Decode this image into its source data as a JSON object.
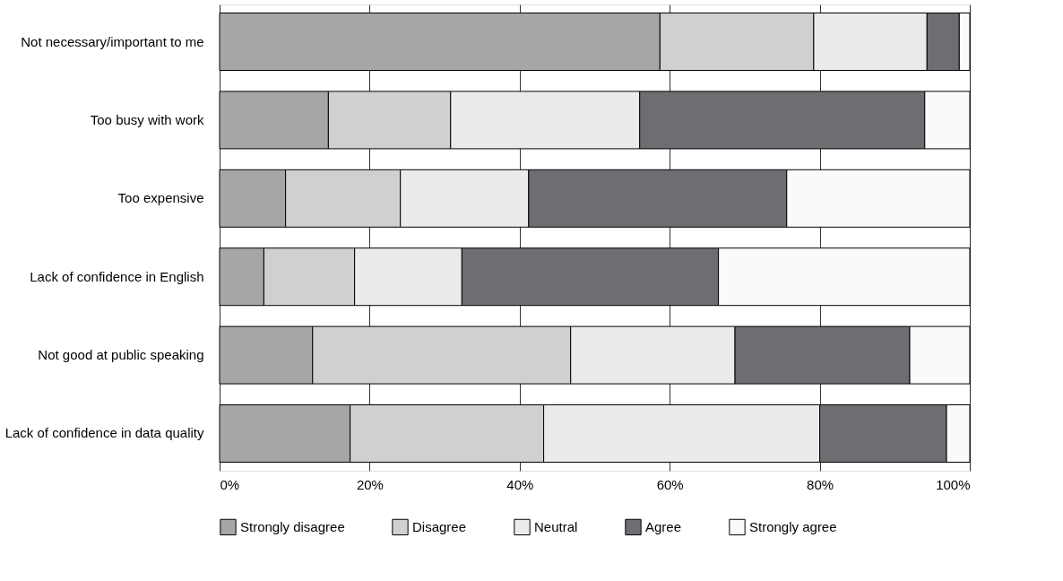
{
  "chart_data": {
    "type": "bar",
    "orientation": "horizontal",
    "stacked": true,
    "categories": [
      "Not necessary/important to me",
      "Too busy with work",
      "Too expensive",
      "Lack of confidence in English",
      "Not good at public speaking",
      "Lack of confidence in data quality"
    ],
    "series": [
      {
        "name": "Strongly disagree",
        "color": "#a6a6a6",
        "values": [
          58.7,
          14.5,
          8.8,
          5.9,
          12.4,
          17.4
        ]
      },
      {
        "name": "Disagree",
        "color": "#d0d0d0",
        "values": [
          20.5,
          16.3,
          15.3,
          12.1,
          34.4,
          25.8
        ]
      },
      {
        "name": "Neutral",
        "color": "#ebebeb",
        "values": [
          15.1,
          25.2,
          17.1,
          14.3,
          21.9,
          36.8
        ]
      },
      {
        "name": "Agree",
        "color": "#6d6e71",
        "values": [
          4.3,
          38.0,
          34.4,
          34.2,
          23.3,
          16.9
        ]
      },
      {
        "name": "Strongly agree",
        "color": "#fafafa",
        "values": [
          1.4,
          6.0,
          24.4,
          33.5,
          8.0,
          3.1
        ]
      }
    ],
    "xlim": [
      0,
      100
    ],
    "xticks": [
      {
        "value": 0,
        "label": "0%"
      },
      {
        "value": 20,
        "label": "20%"
      },
      {
        "value": 40,
        "label": "40%"
      },
      {
        "value": 60,
        "label": "60%"
      },
      {
        "value": 80,
        "label": "80%"
      },
      {
        "value": 100,
        "label": "100%"
      }
    ],
    "grid": "x",
    "legend": "bottom"
  }
}
